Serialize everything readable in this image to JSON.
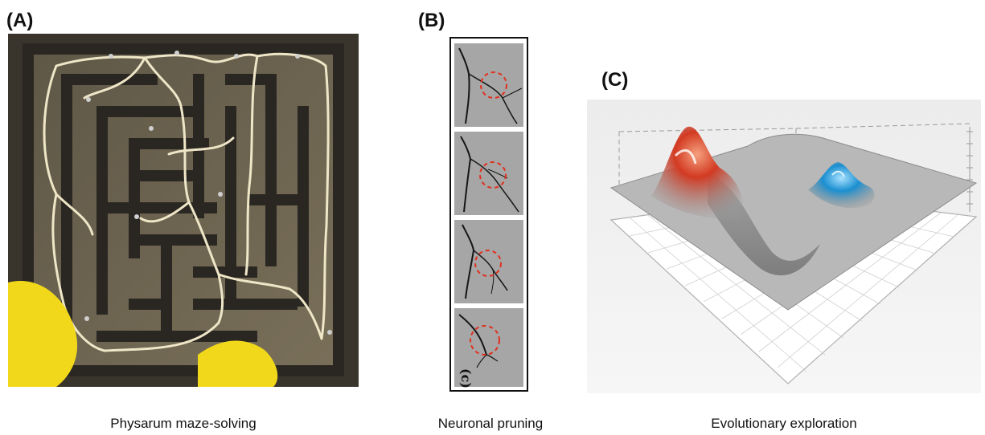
{
  "panels": {
    "a": {
      "label": "(A)",
      "caption": "Physarum maze-solving"
    },
    "b": {
      "label": "(B)",
      "caption": "Neuronal pruning",
      "frame_mark": "(c)"
    },
    "c": {
      "label": "(C)",
      "caption": "Evolutionary exploration"
    }
  },
  "colors": {
    "maze_wall": "#2a2722",
    "maze_floor": "#6e6650",
    "slime": "#efe6c8",
    "yellow_blob": "#f2d81a",
    "prune_circle": "#e0301e",
    "peak_red": "#d23a22",
    "peak_blue": "#1b8fd0",
    "surface": "#b4b4b4"
  }
}
